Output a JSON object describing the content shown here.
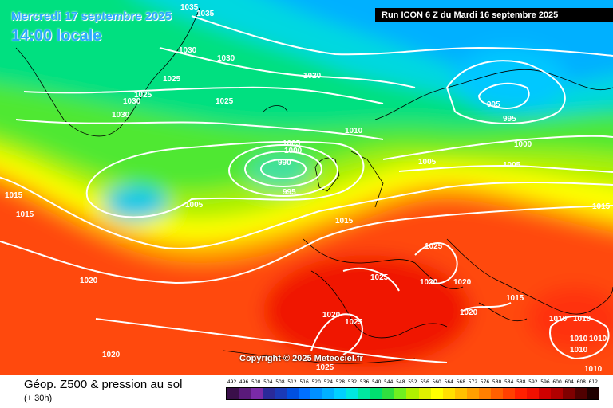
{
  "header": {
    "date_title": "Mercredi 17 septembre 2025",
    "time_title": "14:00 locale",
    "run_info": "Run ICON 6 Z du Mardi 16 septembre 2025"
  },
  "copyright": "Copyright © 2025 Meteociel.fr",
  "footer": {
    "title": "Géop. Z500 & pression au sol",
    "subtitle": "(+ 30h)"
  },
  "legend": {
    "values": [
      "492",
      "496",
      "500",
      "504",
      "508",
      "512",
      "516",
      "520",
      "524",
      "528",
      "532",
      "536",
      "540",
      "544",
      "548",
      "552",
      "556",
      "560",
      "564",
      "568",
      "572",
      "576",
      "580",
      "584",
      "588",
      "592",
      "596",
      "600",
      "604",
      "608",
      "612"
    ],
    "colors": [
      "#3a0f4a",
      "#5a1a7a",
      "#7a2aa8",
      "#2a2a9a",
      "#1a3ab8",
      "#0050e0",
      "#0070ff",
      "#0090ff",
      "#00b0ff",
      "#00d0ff",
      "#00e8e0",
      "#00e8a0",
      "#00e070",
      "#30e040",
      "#70f020",
      "#b0f000",
      "#e0f000",
      "#ffff00",
      "#ffe000",
      "#ffc000",
      "#ffa000",
      "#ff8000",
      "#ff6000",
      "#ff4000",
      "#ff2000",
      "#f01000",
      "#d00000",
      "#b00000",
      "#800000",
      "#500000",
      "#200000"
    ]
  },
  "pressure_labels": [
    {
      "text": "1035"
    },
    {
      "text": "1035"
    },
    {
      "text": "1030"
    },
    {
      "text": "1030"
    },
    {
      "text": "1025"
    },
    {
      "text": "1025"
    },
    {
      "text": "1030"
    },
    {
      "text": "1030"
    },
    {
      "text": "1020"
    },
    {
      "text": "1025"
    },
    {
      "text": "995"
    },
    {
      "text": "995"
    },
    {
      "text": "1000"
    },
    {
      "text": "1010"
    },
    {
      "text": "1005"
    },
    {
      "text": "1000"
    },
    {
      "text": "990"
    },
    {
      "text": "995"
    },
    {
      "text": "1005"
    },
    {
      "text": "1005"
    },
    {
      "text": "1015"
    },
    {
      "text": "1015"
    },
    {
      "text": "1005"
    },
    {
      "text": "1015"
    },
    {
      "text": "1015"
    },
    {
      "text": "1025"
    },
    {
      "text": "1025"
    },
    {
      "text": "1020"
    },
    {
      "text": "1020"
    },
    {
      "text": "1020"
    },
    {
      "text": "1015"
    },
    {
      "text": "1020"
    },
    {
      "text": "1020"
    },
    {
      "text": "1025"
    },
    {
      "text": "1020"
    },
    {
      "text": "1010"
    },
    {
      "text": "1010"
    },
    {
      "text": "1010"
    },
    {
      "text": "1010"
    },
    {
      "text": "1010"
    },
    {
      "text": "1010"
    },
    {
      "text": "1025"
    }
  ]
}
